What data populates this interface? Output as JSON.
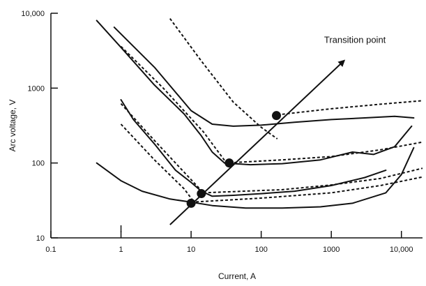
{
  "chart_data": {
    "type": "line",
    "xlabel": "Current, A",
    "ylabel": "Arc voltage, V",
    "xscale": "log",
    "yscale": "log",
    "xlim": [
      0.1,
      20000
    ],
    "ylim": [
      10,
      10000
    ],
    "xticks": [
      {
        "value": 0.1,
        "label": "0.1"
      },
      {
        "value": 1,
        "label": "1"
      },
      {
        "value": 10,
        "label": "10"
      },
      {
        "value": 100,
        "label": "100"
      },
      {
        "value": 1000,
        "label": "1000"
      },
      {
        "value": 10000,
        "label": "10,000"
      }
    ],
    "yticks": [
      {
        "value": 10,
        "label": "10"
      },
      {
        "value": 100,
        "label": "100"
      },
      {
        "value": 1000,
        "label": "1000"
      },
      {
        "value": 10000,
        "label": "10,000"
      }
    ],
    "grid": false,
    "legend": "none",
    "series": [
      {
        "style": "solid",
        "points": [
          [
            0.8,
            6500
          ],
          [
            3,
            1900
          ],
          [
            10,
            500
          ],
          [
            20,
            330
          ],
          [
            40,
            310
          ],
          [
            100,
            320
          ],
          [
            300,
            350
          ],
          [
            1000,
            380
          ],
          [
            3000,
            400
          ],
          [
            8000,
            420
          ],
          [
            15000,
            400
          ]
        ]
      },
      {
        "style": "solid",
        "points": [
          [
            0.45,
            8000
          ],
          [
            1,
            3500
          ],
          [
            3,
            1100
          ],
          [
            8,
            450
          ],
          [
            14,
            230
          ],
          [
            20,
            140
          ],
          [
            30,
            100
          ],
          [
            70,
            95
          ],
          [
            200,
            98
          ],
          [
            700,
            110
          ],
          [
            2000,
            140
          ],
          [
            4000,
            130
          ],
          [
            8000,
            165
          ],
          [
            14000,
            310
          ]
        ]
      },
      {
        "style": "solid",
        "points": [
          [
            1,
            700
          ],
          [
            1.5,
            380
          ],
          [
            3,
            180
          ],
          [
            6,
            80
          ],
          [
            10,
            55
          ],
          [
            14,
            42
          ],
          [
            20,
            36
          ],
          [
            40,
            37
          ],
          [
            100,
            39
          ],
          [
            300,
            42
          ],
          [
            1000,
            50
          ],
          [
            3000,
            64
          ],
          [
            6000,
            80
          ]
        ]
      },
      {
        "style": "solid",
        "points": [
          [
            0.45,
            100
          ],
          [
            1,
            58
          ],
          [
            2,
            42
          ],
          [
            5,
            33
          ],
          [
            10,
            30
          ],
          [
            20,
            27
          ],
          [
            60,
            25
          ],
          [
            200,
            25
          ],
          [
            700,
            26
          ],
          [
            2000,
            29
          ],
          [
            6000,
            40
          ],
          [
            10000,
            70
          ],
          [
            15000,
            160
          ]
        ]
      },
      {
        "style": "dashed",
        "points": [
          [
            5,
            8500
          ],
          [
            14,
            2300
          ],
          [
            40,
            650
          ],
          [
            100,
            300
          ],
          [
            170,
            210
          ]
        ]
      },
      {
        "style": "dashed",
        "points": [
          [
            1,
            3600
          ],
          [
            4,
            1000
          ],
          [
            15,
            260
          ],
          [
            32,
            100
          ]
        ]
      },
      {
        "style": "dashed",
        "points": [
          [
            1,
            620
          ],
          [
            3,
            200
          ],
          [
            8,
            75
          ],
          [
            15,
            40
          ]
        ]
      },
      {
        "style": "dashed",
        "points": [
          [
            1,
            330
          ],
          [
            3,
            110
          ],
          [
            8,
            45
          ],
          [
            11,
            30
          ]
        ]
      },
      {
        "style": "dashed",
        "points": [
          [
            170,
            440
          ],
          [
            1000,
            530
          ],
          [
            5000,
            610
          ],
          [
            20000,
            680
          ]
        ]
      },
      {
        "style": "dashed",
        "points": [
          [
            30,
            100
          ],
          [
            200,
            110
          ],
          [
            1000,
            122
          ],
          [
            5000,
            150
          ],
          [
            20000,
            190
          ]
        ]
      },
      {
        "style": "dashed",
        "points": [
          [
            15,
            40
          ],
          [
            200,
            44
          ],
          [
            1000,
            51
          ],
          [
            5000,
            62
          ],
          [
            20000,
            85
          ]
        ]
      },
      {
        "style": "dashed",
        "points": [
          [
            10,
            30
          ],
          [
            100,
            34
          ],
          [
            1000,
            40
          ],
          [
            5000,
            50
          ],
          [
            20000,
            65
          ]
        ]
      }
    ],
    "transition_points": [
      [
        165,
        430
      ],
      [
        35,
        100
      ],
      [
        14,
        39
      ],
      [
        10,
        29
      ]
    ],
    "transition_arrow": {
      "from": [
        5,
        15
      ],
      "to": [
        1500,
        2300
      ]
    },
    "annotations": [
      {
        "text": "Transition point",
        "at": [
          1500,
          2300
        ]
      }
    ]
  }
}
